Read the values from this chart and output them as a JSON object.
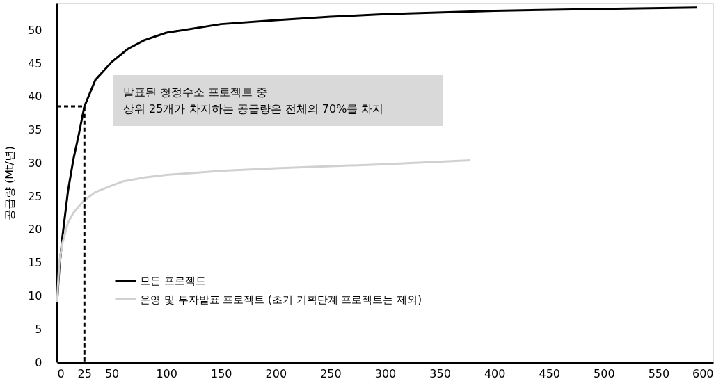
{
  "chart_data": {
    "type": "line",
    "ylabel": "공급량 (Mt/년)",
    "xlim": [
      0,
      600
    ],
    "xticks": [
      0,
      25,
      50,
      100,
      150,
      200,
      250,
      300,
      350,
      400,
      450,
      500,
      550,
      600
    ],
    "ylim": [
      0,
      54
    ],
    "yticks": [
      0,
      5,
      10,
      15,
      20,
      25,
      30,
      35,
      40,
      45,
      50
    ],
    "grid": false,
    "legend": "bottom left",
    "line_style": "solid",
    "marker": "none",
    "series": [
      {
        "name": "모든 프로젝트",
        "color": "#000000",
        "x": [
          0,
          2,
          5,
          10,
          15,
          20,
          25,
          35,
          50,
          65,
          80,
          100,
          150,
          200,
          250,
          300,
          400,
          500,
          585
        ],
        "values": [
          9,
          14,
          19,
          25.8,
          30.6,
          34.4,
          38.5,
          42.5,
          45.2,
          47.2,
          48.5,
          49.6,
          50.9,
          51.5,
          52,
          52.4,
          52.9,
          53.2,
          53.4
        ]
      },
      {
        "name": "운영 및 투자발표 프로젝트 (초기 기획단계 프로젝트는 제외)",
        "color": "#d0d0d0",
        "x": [
          0,
          2,
          5,
          10,
          15,
          20,
          25,
          35,
          50,
          60,
          80,
          100,
          150,
          200,
          250,
          300,
          378
        ],
        "values": [
          9,
          15,
          18,
          21,
          22.5,
          23.5,
          24.4,
          25.6,
          26.6,
          27.2,
          27.8,
          28.2,
          28.8,
          29.2,
          29.5,
          29.8,
          30.4
        ]
      },
      {
        "type": "line",
        "line_style": "dashed",
        "color": "#000000",
        "x": [
          0,
          25,
          25
        ],
        "values": [
          38.5,
          38.5,
          0
        ]
      }
    ],
    "annotations": [
      "발표된 청정수소 프로젝트 중\n상위 25개가 차지하는 공급량은 전체의 70%를 차지"
    ]
  }
}
